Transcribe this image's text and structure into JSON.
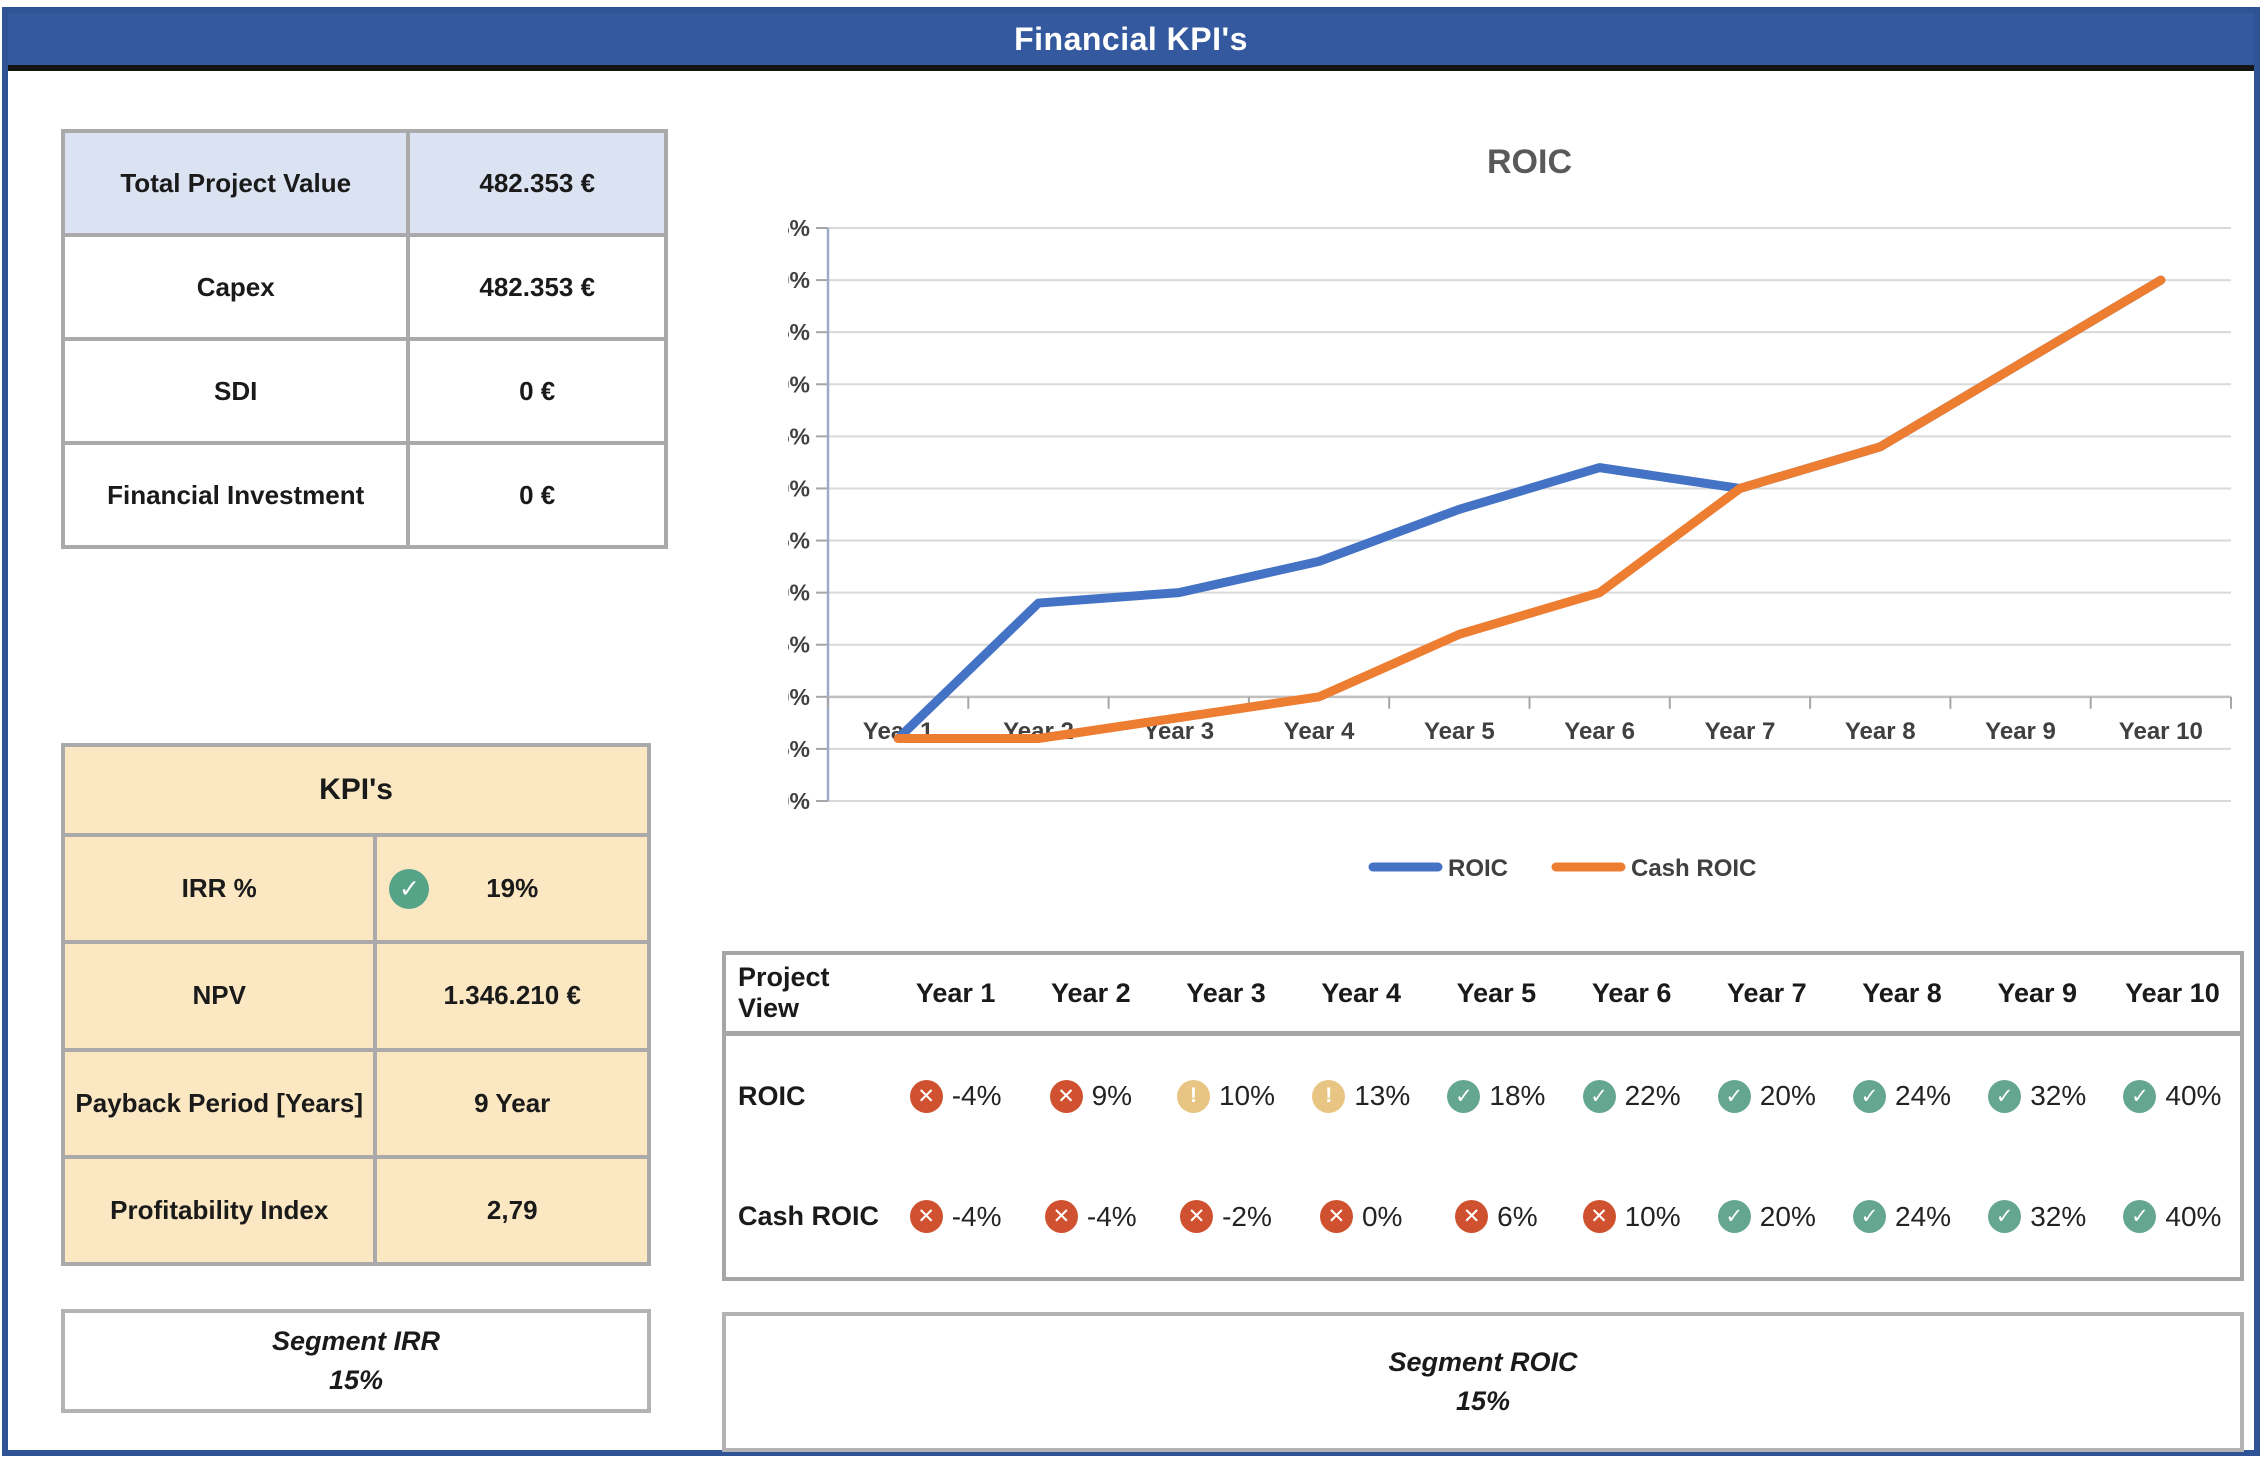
{
  "header": {
    "title": "Financial KPI's"
  },
  "project_values": {
    "rows": [
      {
        "label": "Total Project Value",
        "value": "482.353 €",
        "highlight": true
      },
      {
        "label": "Capex",
        "value": "482.353 €",
        "highlight": false
      },
      {
        "label": "SDI",
        "value": "0 €",
        "highlight": false
      },
      {
        "label": "Financial Investment",
        "value": "0 €",
        "highlight": false
      }
    ]
  },
  "kpis": {
    "title": "KPI's",
    "rows": [
      {
        "label": "IRR %",
        "value": "19%",
        "icon": "check-icon"
      },
      {
        "label": "NPV",
        "value": "1.346.210 €",
        "icon": null
      },
      {
        "label": "Payback Period [Years]",
        "value": "9 Year",
        "icon": null
      },
      {
        "label": "Profitability Index",
        "value": "2,79",
        "icon": null
      }
    ]
  },
  "segment_irr": {
    "title": "Segment IRR",
    "value": "15%"
  },
  "segment_roic": {
    "title": "Segment ROIC",
    "value": "15%"
  },
  "chart_data": {
    "type": "line",
    "title": "ROIC",
    "categories": [
      "Year 1",
      "Year 2",
      "Year 3",
      "Year 4",
      "Year 5",
      "Year 6",
      "Year 7",
      "Year 8",
      "Year 9",
      "Year 10"
    ],
    "series": [
      {
        "name": "ROIC",
        "color": "#4472C4",
        "values": [
          -4,
          9,
          10,
          13,
          18,
          22,
          20,
          24,
          32,
          40
        ]
      },
      {
        "name": "Cash ROIC",
        "color": "#ED7D31",
        "values": [
          -4,
          -4,
          -2,
          0,
          6,
          10,
          20,
          24,
          32,
          40
        ]
      }
    ],
    "ylabel": "",
    "xlabel": "",
    "ylim": [
      -10,
      45
    ],
    "ytick_step": 5,
    "ytick_format": "percent",
    "grid": "horizontal",
    "legend_position": "bottom"
  },
  "roic_table": {
    "columns": [
      "Project View",
      "Year 1",
      "Year 2",
      "Year 3",
      "Year 4",
      "Year 5",
      "Year 6",
      "Year 7",
      "Year 8",
      "Year 9",
      "Year 10"
    ],
    "rows": [
      {
        "label": "ROIC",
        "cells": [
          {
            "status": "bad",
            "value": "-4%"
          },
          {
            "status": "bad",
            "value": "9%"
          },
          {
            "status": "warn",
            "value": "10%"
          },
          {
            "status": "warn",
            "value": "13%"
          },
          {
            "status": "good",
            "value": "18%"
          },
          {
            "status": "good",
            "value": "22%"
          },
          {
            "status": "good",
            "value": "20%"
          },
          {
            "status": "good",
            "value": "24%"
          },
          {
            "status": "good",
            "value": "32%"
          },
          {
            "status": "good",
            "value": "40%"
          }
        ]
      },
      {
        "label": "Cash ROIC",
        "cells": [
          {
            "status": "bad",
            "value": "-4%"
          },
          {
            "status": "bad",
            "value": "-4%"
          },
          {
            "status": "bad",
            "value": "-2%"
          },
          {
            "status": "bad",
            "value": "0%"
          },
          {
            "status": "bad",
            "value": "6%"
          },
          {
            "status": "bad",
            "value": "10%"
          },
          {
            "status": "good",
            "value": "20%"
          },
          {
            "status": "good",
            "value": "24%"
          },
          {
            "status": "good",
            "value": "32%"
          },
          {
            "status": "good",
            "value": "40%"
          }
        ]
      }
    ]
  },
  "status_icons": {
    "bad": "x-icon",
    "warn": "warning-icon",
    "good": "check-icon"
  },
  "colors": {
    "frame_blue": "#2F5496",
    "header_blue": "#35599E",
    "series_roic": "#4472C4",
    "series_cash_roic": "#ED7D31",
    "status_bad": "#D0512F",
    "status_warn": "#E9C583",
    "status_good": "#64A690",
    "kpi_bg": "#FBE7C2",
    "highlight_bg": "#DBE2F1",
    "gridline": "#D9D9D9"
  }
}
